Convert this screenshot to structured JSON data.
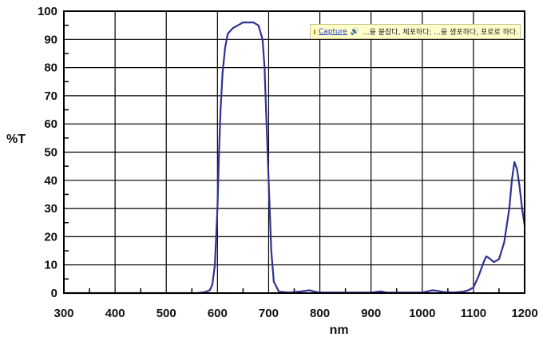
{
  "tooltip": {
    "link_text": "Capture",
    "speaker_icon": "speaker-icon",
    "definition": "...을 붙잡다, 체포하다; ...을 생포하다, 포로로 하다."
  },
  "chart_data": {
    "type": "line",
    "title": "",
    "xlabel": "nm",
    "ylabel": "%T",
    "xlim": [
      300,
      1200
    ],
    "ylim": [
      0,
      100
    ],
    "xticks": [
      300,
      400,
      500,
      600,
      700,
      800,
      900,
      1000,
      1100,
      1200
    ],
    "yticks": [
      0,
      10,
      20,
      30,
      40,
      50,
      60,
      70,
      80,
      90,
      100
    ],
    "grid": true,
    "line_color": "#2e3192",
    "series": [
      {
        "name": "",
        "x": [
          300,
          500,
          560,
          575,
          585,
          590,
          595,
          600,
          603,
          606,
          610,
          615,
          620,
          630,
          640,
          650,
          660,
          670,
          680,
          688,
          692,
          695,
          700,
          705,
          710,
          720,
          740,
          760,
          780,
          790,
          800,
          900,
          920,
          930,
          1000,
          1020,
          1030,
          1040,
          1060,
          1080,
          1090,
          1100,
          1110,
          1120,
          1125,
          1130,
          1140,
          1150,
          1160,
          1170,
          1175,
          1180,
          1185,
          1190,
          1195,
          1200
        ],
        "y": [
          0,
          0,
          0,
          0.3,
          1,
          3,
          10,
          30,
          50,
          65,
          78,
          87,
          92,
          94,
          95,
          96,
          96,
          96,
          95,
          90,
          80,
          65,
          40,
          15,
          4,
          0.5,
          0.2,
          0.5,
          1,
          0.5,
          0.2,
          0.2,
          0.6,
          0.2,
          0.2,
          1,
          0.8,
          0.4,
          0.2,
          0.5,
          1,
          2,
          6,
          11,
          13,
          12.5,
          11,
          12,
          18,
          30,
          40,
          46.5,
          44,
          38,
          30,
          24
        ]
      }
    ]
  }
}
